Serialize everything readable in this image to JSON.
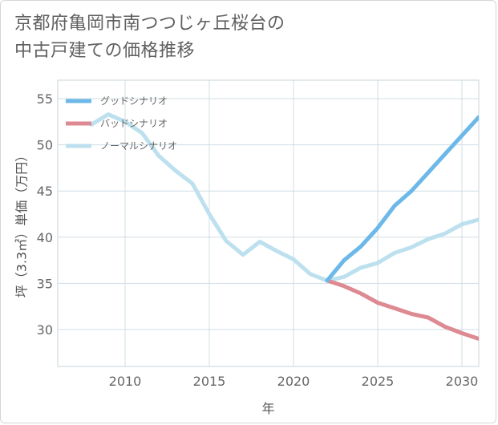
{
  "title": {
    "line1": "京都府亀岡市南つつじヶ丘桜台の",
    "line2": "中古戸建ての価格推移"
  },
  "chart_data": {
    "type": "line",
    "title": "京都府亀岡市南つつじヶ丘桜台の中古戸建ての価格推移",
    "xlabel": "年",
    "ylabel": "坪（3.3㎡）単価（万円）",
    "xlim": [
      2006,
      2031
    ],
    "ylim": [
      26,
      57
    ],
    "xticks": [
      2010,
      2015,
      2020,
      2025,
      2030
    ],
    "yticks": [
      30,
      35,
      40,
      45,
      50,
      55
    ],
    "grid": true,
    "legend_position": "top-left",
    "series": [
      {
        "name": "グッドシナリオ",
        "color": "#6cb8e8",
        "x": [
          2022,
          2023,
          2024,
          2025,
          2026,
          2027,
          2028,
          2029,
          2030,
          2031
        ],
        "values": [
          35.3,
          37.5,
          39.0,
          41.0,
          43.4,
          45.0,
          47.0,
          49.0,
          51.0,
          53.0
        ]
      },
      {
        "name": "バッドシナリオ",
        "color": "#dd8a92",
        "x": [
          2022,
          2023,
          2024,
          2025,
          2026,
          2027,
          2028,
          2029,
          2030,
          2031
        ],
        "values": [
          35.3,
          34.7,
          33.9,
          32.9,
          32.3,
          31.7,
          31.3,
          30.3,
          29.6,
          29.0
        ]
      },
      {
        "name": "ノーマルシナリオ",
        "color": "#bde0ee",
        "x": [
          2008,
          2009,
          2010,
          2011,
          2012,
          2013,
          2014,
          2015,
          2016,
          2017,
          2018,
          2019,
          2020,
          2021,
          2022,
          2023,
          2024,
          2025,
          2026,
          2027,
          2028,
          2029,
          2030,
          2031
        ],
        "values": [
          52.2,
          53.3,
          52.5,
          51.3,
          48.8,
          47.2,
          45.8,
          42.5,
          39.6,
          38.1,
          39.5,
          38.5,
          37.6,
          36.0,
          35.3,
          35.7,
          36.7,
          37.2,
          38.3,
          38.9,
          39.8,
          40.4,
          41.4,
          41.9
        ]
      }
    ]
  }
}
